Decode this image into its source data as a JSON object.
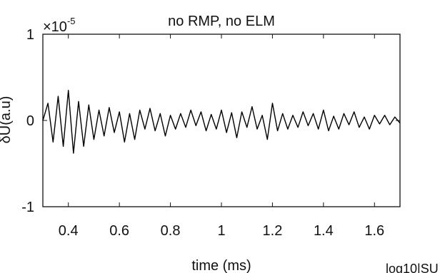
{
  "chart_data": {
    "type": "line",
    "title": "no RMP, no ELM",
    "xlabel": "time (ms)",
    "ylabel": "δU(a.u)",
    "multiplier_label": "×10",
    "multiplier_exponent": "-5",
    "xlim": [
      0.3,
      1.7
    ],
    "ylim": [
      -1,
      1
    ],
    "xticks": [
      0.4,
      0.6,
      0.8,
      1.0,
      1.2,
      1.4,
      1.6
    ],
    "xtick_labels": [
      "0.4",
      "0.6",
      "0.8",
      "1",
      "1.2",
      "1.4",
      "1.6"
    ],
    "yticks": [
      -1,
      0,
      1
    ],
    "ytick_labels": [
      "-1",
      "0",
      "1"
    ],
    "grid": false,
    "line_color": "#000000",
    "series": [
      {
        "x": [
          0.3,
          0.32,
          0.34,
          0.36,
          0.38,
          0.4,
          0.42,
          0.44,
          0.46,
          0.48,
          0.5,
          0.52,
          0.54,
          0.56,
          0.58,
          0.6,
          0.62,
          0.64,
          0.66,
          0.68,
          0.7,
          0.72,
          0.74,
          0.76,
          0.78,
          0.8,
          0.82,
          0.84,
          0.86,
          0.88,
          0.9,
          0.92,
          0.94,
          0.96,
          0.98,
          1.0,
          1.02,
          1.04,
          1.06,
          1.08,
          1.1,
          1.12,
          1.14,
          1.16,
          1.18,
          1.2,
          1.22,
          1.24,
          1.26,
          1.28,
          1.3,
          1.32,
          1.34,
          1.36,
          1.38,
          1.4,
          1.42,
          1.44,
          1.46,
          1.48,
          1.5,
          1.52,
          1.54,
          1.56,
          1.58,
          1.6,
          1.62,
          1.64,
          1.66,
          1.68,
          1.7
        ],
        "values": [
          0.0,
          0.2,
          -0.25,
          0.28,
          -0.3,
          0.35,
          -0.38,
          0.22,
          -0.3,
          0.18,
          -0.22,
          0.12,
          -0.18,
          0.15,
          -0.14,
          0.1,
          -0.25,
          0.08,
          -0.22,
          0.12,
          -0.1,
          0.14,
          -0.12,
          0.08,
          -0.18,
          0.06,
          -0.1,
          0.08,
          -0.08,
          0.12,
          -0.06,
          0.1,
          -0.12,
          0.07,
          -0.1,
          0.12,
          -0.14,
          0.09,
          -0.2,
          0.1,
          -0.08,
          0.16,
          -0.1,
          0.06,
          -0.22,
          0.2,
          -0.12,
          0.08,
          -0.1,
          0.06,
          -0.08,
          0.1,
          -0.06,
          0.08,
          -0.1,
          0.12,
          -0.12,
          0.05,
          -0.1,
          0.08,
          -0.05,
          0.1,
          -0.08,
          0.04,
          -0.1,
          0.06,
          -0.04,
          0.06,
          -0.05,
          0.04,
          -0.03
        ]
      }
    ]
  },
  "corner_label": "log10|SU"
}
